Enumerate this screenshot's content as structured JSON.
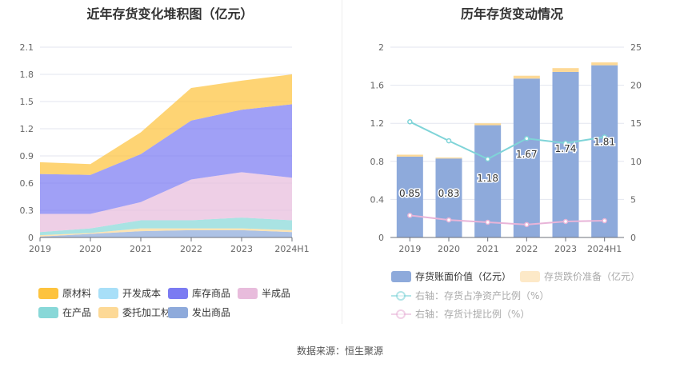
{
  "footer": {
    "source": "数据来源：恒生聚源"
  },
  "chart_data": [
    {
      "type": "area",
      "stacked": true,
      "title": "近年存货变化堆积图（亿元）",
      "categories": [
        "2019",
        "2020",
        "2021",
        "2022",
        "2023",
        "2024H1"
      ],
      "ylim": [
        0,
        2.1
      ],
      "yticks": [
        "0",
        "0.3",
        "0.6",
        "0.9",
        "1.2",
        "1.5",
        "1.8",
        "2.1"
      ],
      "ytick_values": [
        0,
        0.3,
        0.6,
        0.9,
        1.2,
        1.5,
        1.8,
        2.1
      ],
      "grid": true,
      "legend_position": "bottom",
      "series": [
        {
          "name": "发出商品",
          "color": "#8eaadb",
          "values": [
            0.01,
            0.04,
            0.07,
            0.08,
            0.08,
            0.06
          ]
        },
        {
          "name": "委托加工材料",
          "color": "#fdd996",
          "values": [
            0.015,
            0.01,
            0.03,
            0.02,
            0.02,
            0.02
          ]
        },
        {
          "name": "在产品",
          "color": "#88d8d8",
          "values": [
            0.035,
            0.05,
            0.09,
            0.09,
            0.12,
            0.11
          ]
        },
        {
          "name": "开发成本",
          "color": "#a8dff8",
          "values": [
            0,
            0,
            0,
            0,
            0,
            0
          ]
        },
        {
          "name": "半成品",
          "color": "#e8bcdc",
          "values": [
            0.2,
            0.16,
            0.2,
            0.45,
            0.5,
            0.47
          ]
        },
        {
          "name": "库存商品",
          "color": "#7b7bf2",
          "values": [
            0.44,
            0.43,
            0.53,
            0.65,
            0.69,
            0.81
          ]
        },
        {
          "name": "原材料",
          "color": "#fdc33e",
          "values": [
            0.13,
            0.12,
            0.24,
            0.36,
            0.32,
            0.33
          ]
        }
      ],
      "legend_order": [
        "原材料",
        "开发成本",
        "库存商品",
        "半成品",
        "在产品",
        "委托加工材料",
        "发出商品"
      ]
    },
    {
      "type": "bar",
      "stacked": true,
      "title": "历年存货变动情况",
      "categories": [
        "2019",
        "2020",
        "2021",
        "2022",
        "2023",
        "2024H1"
      ],
      "ylim": [
        0,
        2
      ],
      "yticks": [
        "0",
        "0.4",
        "0.8",
        "1.2",
        "1.6",
        "2"
      ],
      "ytick_values": [
        0,
        0.4,
        0.8,
        1.2,
        1.6,
        2
      ],
      "y2lim": [
        0,
        25
      ],
      "y2ticks": [
        "0",
        "5",
        "10",
        "15",
        "20",
        "25"
      ],
      "y2tick_values": [
        0,
        5,
        10,
        15,
        20,
        25
      ],
      "grid": true,
      "legend_position": "bottom",
      "series": [
        {
          "name": "存货账面价值（亿元）",
          "color": "#8eaadb",
          "axis": "left",
          "kind": "bar",
          "values": [
            0.85,
            0.83,
            1.18,
            1.67,
            1.74,
            1.81
          ],
          "labels": [
            "0.85",
            "0.83",
            "1.18",
            "1.67",
            "1.74",
            "1.81"
          ]
        },
        {
          "name": "存货跌价准备（亿元）",
          "color": "#fdd996",
          "axis": "left",
          "kind": "bar",
          "values": [
            0.02,
            0.01,
            0.02,
            0.03,
            0.04,
            0.03
          ]
        },
        {
          "name": "右轴：存货占净资产比例（%）",
          "color": "#7fd4d8",
          "axis": "right",
          "kind": "line",
          "values": [
            15.2,
            12.7,
            10.3,
            13.0,
            12.4,
            13.2
          ]
        },
        {
          "name": "右轴：存货计提比例（%）",
          "color": "#e8b4d8",
          "axis": "right",
          "kind": "line",
          "values": [
            2.9,
            2.3,
            2.0,
            1.7,
            2.1,
            2.2
          ]
        }
      ]
    }
  ]
}
